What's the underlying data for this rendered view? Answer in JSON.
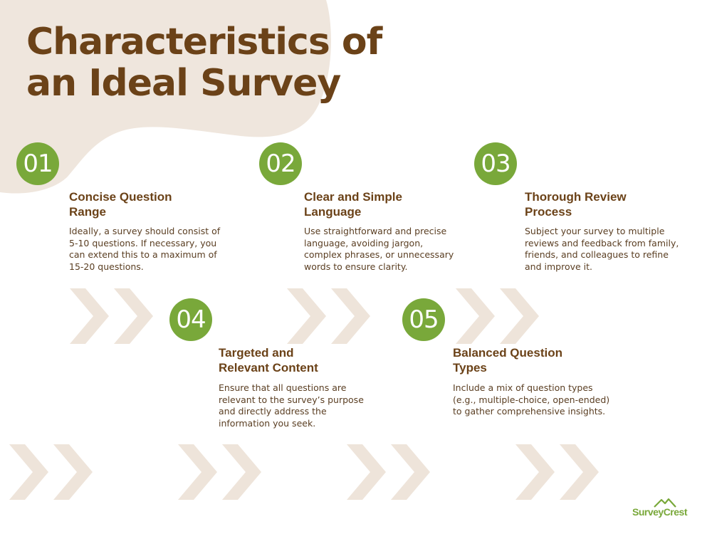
{
  "title": {
    "line1": "Characteristics of",
    "line2": "an Ideal Survey"
  },
  "items": [
    {
      "number": "01",
      "title_line1": "Concise Question",
      "title_line2": "Range",
      "description": "Ideally, a survey should consist of 5-10 questions. If necessary, you can extend this to a maximum of 15-20 questions."
    },
    {
      "number": "02",
      "title_line1": "Clear and Simple",
      "title_line2": "Language",
      "description": "Use straightforward and precise language, avoiding jargon, complex phrases, or unnecessary words to ensure clarity."
    },
    {
      "number": "03",
      "title_line1": "Thorough Review",
      "title_line2": "Process",
      "description": "Subject your survey to multiple reviews and feedback from family, friends, and colleagues to refine and improve it."
    },
    {
      "number": "04",
      "title_line1": "Targeted and",
      "title_line2": "Relevant Content",
      "description": "Ensure that all questions are relevant to the survey’s purpose and directly address the information you seek."
    },
    {
      "number": "05",
      "title_line1": "Balanced Question",
      "title_line2": "Types",
      "description": "Include a mix of question types (e.g., multiple-choice, open-ended) to gather comprehensive insights."
    }
  ],
  "logo": {
    "text": "SurveyCrest",
    "icon": "mountain-icon"
  },
  "colors": {
    "title": "#6b4218",
    "accent_green": "#79a83a",
    "blob_beige": "#efe6dd",
    "chevron_beige": "#eee4da",
    "body_text": "#5a3e22"
  }
}
